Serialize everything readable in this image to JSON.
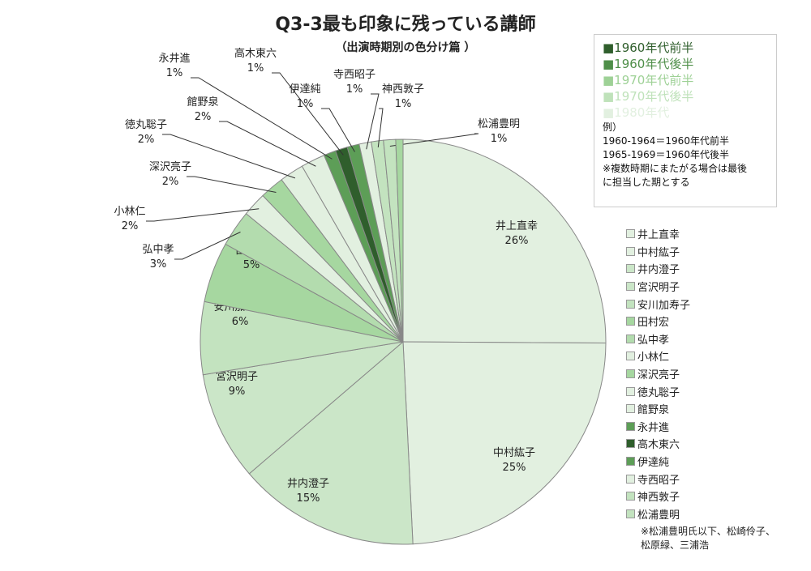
{
  "chart_data": {
    "type": "pie",
    "title": "Q3-3最も印象に残っている講師",
    "subtitle": "（出演時期別の色分け篇 ）",
    "slices": [
      {
        "name": "井上直幸",
        "value": 26,
        "label": "26%",
        "color": "#e2f0e0"
      },
      {
        "name": "中村紘子",
        "value": 25,
        "label": "25%",
        "color": "#e2f0e0"
      },
      {
        "name": "井内澄子",
        "value": 15,
        "label": "15%",
        "color": "#cbe6c8"
      },
      {
        "name": "宮沢明子",
        "value": 9,
        "label": "9%",
        "color": "#cbe6c8"
      },
      {
        "name": "安川加寿子",
        "value": 6,
        "label": "6%",
        "color": "#c3e3bf"
      },
      {
        "name": "田村宏",
        "value": 5,
        "label": "5%",
        "color": "#a6d7a0"
      },
      {
        "name": "弘中孝",
        "value": 3,
        "label": "3%",
        "color": "#b3dcae"
      },
      {
        "name": "小林仁",
        "value": 2,
        "label": "2%",
        "color": "#e2f0e0"
      },
      {
        "name": "深沢亮子",
        "value": 2,
        "label": "2%",
        "color": "#a6d7a0"
      },
      {
        "name": "徳丸聡子",
        "value": 2,
        "label": "2%",
        "color": "#e2f0e0"
      },
      {
        "name": "館野泉",
        "value": 2,
        "label": "2%",
        "color": "#e2f0e0"
      },
      {
        "name": "永井進",
        "value": 1,
        "label": "1%",
        "color": "#5d9e57"
      },
      {
        "name": "高木東六",
        "value": 1,
        "label": "1%",
        "color": "#2f5e2c"
      },
      {
        "name": "伊達純",
        "value": 1,
        "label": "1%",
        "color": "#5d9e57"
      },
      {
        "name": "寺西昭子",
        "value": 1,
        "label": "1%",
        "color": "#e2f0e0"
      },
      {
        "name": "神西敦子",
        "value": 1,
        "label": "1%",
        "color": "#c3e3bf"
      },
      {
        "name": "松浦豊明",
        "value": 1,
        "label": "1%",
        "color": "#c3e3bf"
      }
    ]
  },
  "period_legend": {
    "items": [
      {
        "label": "■1960年代前半",
        "color": "#2f5e2c"
      },
      {
        "label": "■1960年代後半",
        "color": "#4f8f49"
      },
      {
        "label": "■1970年代前半",
        "color": "#9ed196"
      },
      {
        "label": "■1970年代後半",
        "color": "#bfe2ba"
      },
      {
        "label": "■1980年代",
        "color": "#e2f0e0"
      }
    ],
    "example_title": "例）",
    "example_lines": [
      "1960-1964＝1960年代前半",
      "1965-1969＝1960年代後半",
      "※複数時期にまたがる場合は最後",
      "に担当した期とする"
    ]
  },
  "note": [
    "※松浦豊明氏以下、松崎伶子、",
    "松原緑、三浦浩"
  ]
}
